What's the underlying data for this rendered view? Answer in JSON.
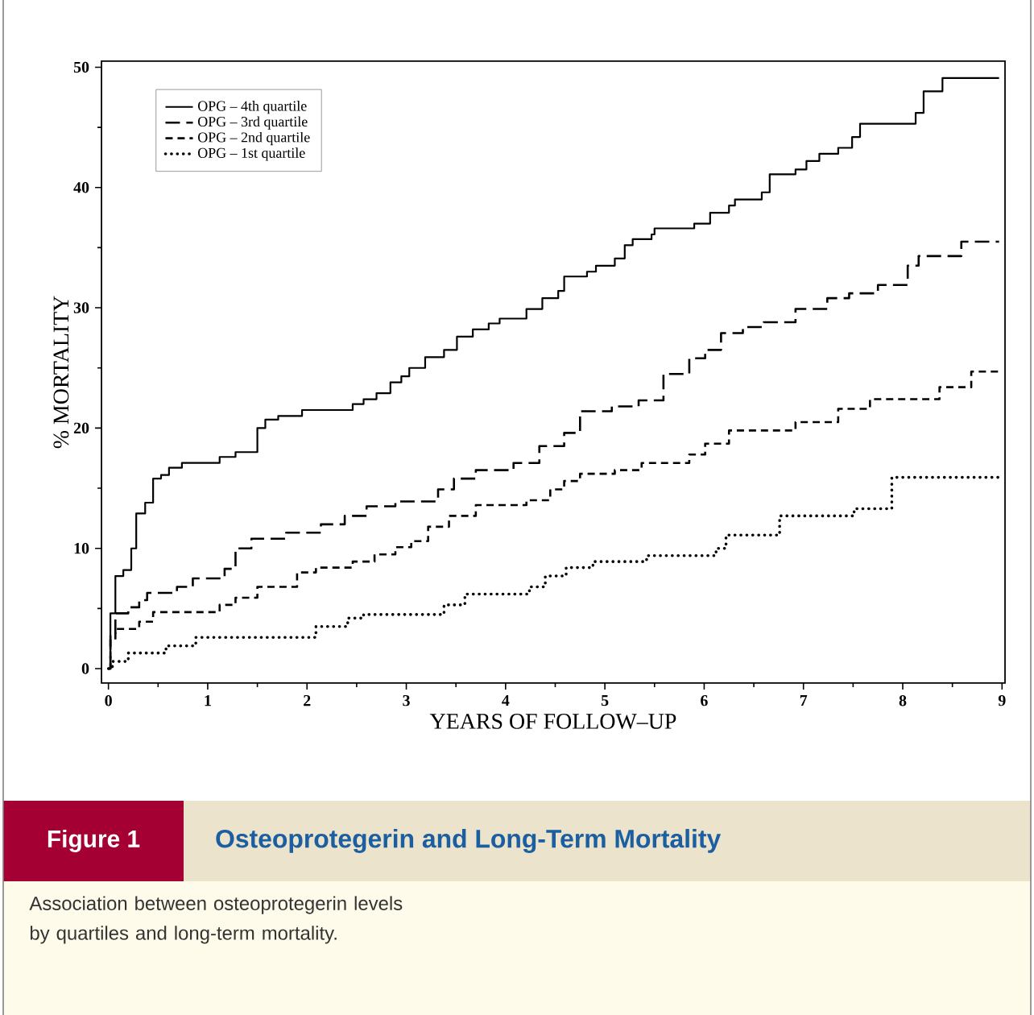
{
  "chart_data": {
    "type": "step",
    "title": "Osteoprotegerin and Long-Term Mortality",
    "xlabel": "YEARS OF FOLLOW–UP",
    "ylabel": "% MORTALITY",
    "annotations": [
      "Figure 1",
      "Association between osteoprotegerin levels by quartiles and long-term mortality."
    ],
    "xlim": [
      -0.07,
      9.03
    ],
    "ylim": [
      -1.2,
      50.5
    ],
    "xticks": [
      0,
      1,
      2,
      3,
      4,
      5,
      6,
      7,
      8,
      9
    ],
    "yticks": [
      0,
      10,
      20,
      30,
      40,
      50
    ],
    "legend": "top left",
    "series": [
      {
        "name": "OPG  –  4th quartile",
        "color": "#000000",
        "line_style": "solid",
        "x": [
          0,
          0.02,
          0.07,
          0.15,
          0.23,
          0.28,
          0.37,
          0.45,
          0.53,
          0.61,
          0.74,
          1.12,
          1.28,
          1.5,
          1.58,
          1.71,
          1.95,
          2.46,
          2.57,
          2.7,
          2.84,
          2.95,
          3.03,
          3.19,
          3.38,
          3.51,
          3.67,
          3.83,
          3.94,
          4.21,
          4.37,
          4.53,
          4.59,
          4.82,
          4.91,
          5.1,
          5.2,
          5.28,
          5.47,
          5.5,
          5.9,
          6.06,
          6.25,
          6.31,
          6.58,
          6.66,
          6.92,
          7.03,
          7.16,
          7.35,
          7.49,
          7.57,
          8.13,
          8.21,
          8.4,
          8.97
        ],
        "values": [
          0,
          4.6,
          7.7,
          8.2,
          10,
          12.9,
          13.8,
          15.8,
          16.1,
          16.7,
          17.1,
          17.6,
          18,
          20,
          20.7,
          21,
          21.5,
          22,
          22.4,
          22.9,
          23.8,
          24.3,
          25,
          25.9,
          26.5,
          27.6,
          28.2,
          28.7,
          29.1,
          29.9,
          30.8,
          31.4,
          32.6,
          33,
          33.5,
          34.1,
          35.2,
          35.7,
          36.1,
          36.6,
          37,
          37.9,
          38.5,
          39,
          39.6,
          41.1,
          41.5,
          42.2,
          42.8,
          43.3,
          44.2,
          45.3,
          46.2,
          48,
          49.1,
          49.1
        ]
      },
      {
        "name": "OPG  –  3rd quartile",
        "color": "#000000",
        "line_style": "dashed",
        "x": [
          0,
          0.02,
          0.07,
          0.2,
          0.31,
          0.39,
          0.69,
          0.85,
          1.17,
          1.28,
          1.44,
          1.79,
          2.14,
          2.38,
          2.6,
          2.89,
          3.32,
          3.48,
          3.7,
          4.08,
          4.34,
          4.59,
          4.75,
          5.07,
          5.34,
          5.59,
          5.85,
          6.01,
          6.17,
          6.39,
          6.6,
          6.92,
          7.24,
          7.46,
          7.75,
          8.05,
          8.16,
          8.59,
          8.97
        ],
        "values": [
          0,
          2.8,
          4.6,
          5.1,
          5.7,
          6.3,
          6.8,
          7.5,
          8.3,
          10,
          10.8,
          11.3,
          12,
          12.7,
          13.5,
          13.9,
          14.9,
          15.8,
          16.5,
          17.1,
          18.5,
          19.6,
          21.4,
          21.8,
          22.3,
          24.5,
          25.8,
          26.5,
          27.9,
          28.4,
          28.8,
          29.9,
          30.8,
          31.2,
          31.9,
          33.5,
          34.3,
          35.5,
          35.5
        ]
      },
      {
        "name": "OPG  –  2nd quartile",
        "color": "#000000",
        "line_style": "dashed",
        "x": [
          0,
          0.02,
          0.07,
          0.31,
          0.45,
          1.12,
          1.28,
          1.5,
          1.9,
          2.09,
          2.46,
          2.68,
          2.89,
          3.05,
          3.22,
          3.43,
          3.7,
          4.21,
          4.45,
          4.59,
          4.75,
          5.1,
          5.37,
          5.85,
          6.01,
          6.25,
          6.92,
          7.35,
          7.67,
          8.37,
          8.69,
          8.97
        ],
        "values": [
          0,
          2.4,
          3.3,
          3.9,
          4.7,
          5.3,
          5.9,
          6.8,
          8,
          8.4,
          8.9,
          9.5,
          10.1,
          10.6,
          11.8,
          12.7,
          13.6,
          14,
          14.9,
          15.6,
          16.2,
          16.5,
          17.1,
          17.8,
          18.7,
          19.8,
          20.5,
          21.6,
          22.4,
          23.4,
          24.7,
          24.7
        ]
      },
      {
        "name": "OPG  –  1st quartile",
        "color": "#000000",
        "line_style": "dotted",
        "x": [
          0,
          0.04,
          0.2,
          0.58,
          0.88,
          2.09,
          2.41,
          2.57,
          3.38,
          3.59,
          4.24,
          4.4,
          4.61,
          4.88,
          5.42,
          6.12,
          6.22,
          6.76,
          7.51,
          7.89,
          8.97
        ],
        "values": [
          0,
          0.6,
          1.3,
          1.9,
          2.6,
          3.5,
          4.2,
          4.5,
          5.3,
          6.2,
          6.8,
          7.7,
          8.4,
          8.9,
          9.4,
          10,
          11.1,
          12.7,
          13.3,
          15.9,
          15.9
        ]
      }
    ]
  }
}
